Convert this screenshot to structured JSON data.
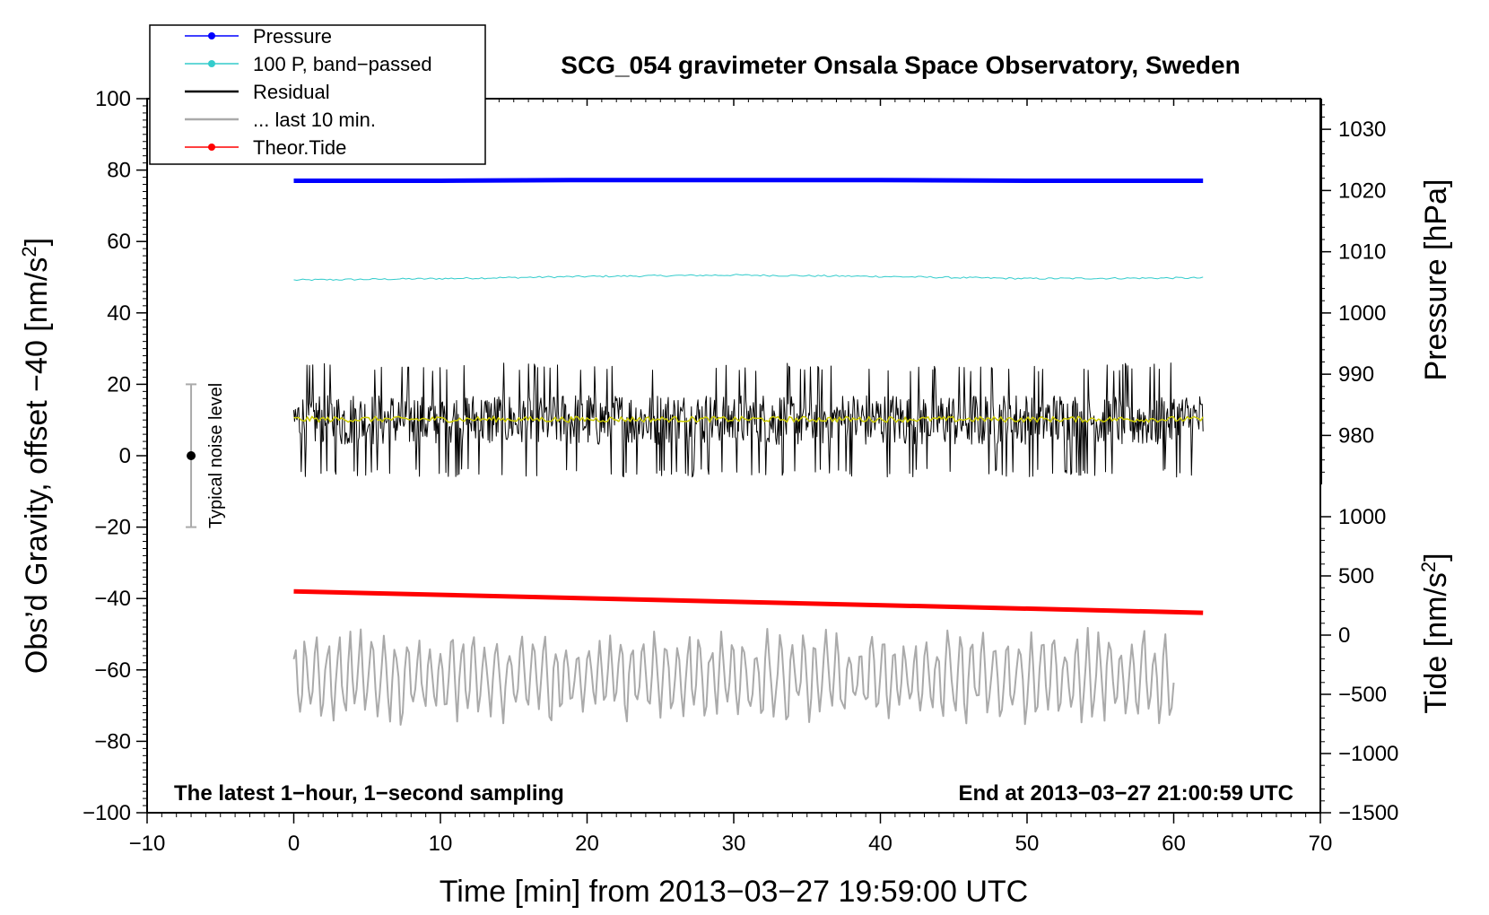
{
  "chart_data": {
    "type": "line",
    "title": "SCG_054 gravimeter Onsala Space Observatory, Sweden",
    "xlabel": "Time [min] from 2013−03−27 19:59:00 UTC",
    "ylabel_left_prefix": "Obs’d Gravity, offset −40 [nm/s",
    "ylabel_left_sup": "2",
    "ylabel_left_suffix": "]",
    "ylabel_right_pressure": "Pressure [hPa]",
    "ylabel_right_tide_prefix": "Tide [nm/s",
    "ylabel_right_tide_sup": "2",
    "ylabel_right_tide_suffix": "]",
    "xlim": [
      -10,
      70
    ],
    "ylim": [
      -100,
      100
    ],
    "pressure_axis_range": [
      972,
      1035
    ],
    "tide_axis_range": [
      -1500,
      1000
    ],
    "x_ticks": [
      {
        "v": -10,
        "t": "−10"
      },
      {
        "v": 0,
        "t": "0"
      },
      {
        "v": 10,
        "t": "10"
      },
      {
        "v": 20,
        "t": "20"
      },
      {
        "v": 30,
        "t": "30"
      },
      {
        "v": 40,
        "t": "40"
      },
      {
        "v": 50,
        "t": "50"
      },
      {
        "v": 60,
        "t": "60"
      },
      {
        "v": 70,
        "t": "70"
      }
    ],
    "y_ticks": [
      {
        "v": 100,
        "t": "100"
      },
      {
        "v": 80,
        "t": "80"
      },
      {
        "v": 60,
        "t": "60"
      },
      {
        "v": 40,
        "t": "40"
      },
      {
        "v": 20,
        "t": "20"
      },
      {
        "v": 0,
        "t": "0"
      },
      {
        "v": -20,
        "t": "−20"
      },
      {
        "v": -40,
        "t": "−40"
      },
      {
        "v": -60,
        "t": "−60"
      },
      {
        "v": -80,
        "t": "−80"
      },
      {
        "v": -100,
        "t": "−100"
      }
    ],
    "pressure_ticks": [
      {
        "v": 1030,
        "t": "1030"
      },
      {
        "v": 1020,
        "t": "1020"
      },
      {
        "v": 1010,
        "t": "1010"
      },
      {
        "v": 1000,
        "t": "1000"
      },
      {
        "v": 990,
        "t": "990"
      },
      {
        "v": 980,
        "t": "980"
      }
    ],
    "tide_ticks": [
      {
        "v": 1000,
        "t": "1000"
      },
      {
        "v": 500,
        "t": "500"
      },
      {
        "v": 0,
        "t": "0"
      },
      {
        "v": -500,
        "t": "−500"
      },
      {
        "v": -1000,
        "t": "−1000"
      },
      {
        "v": -1500,
        "t": "−1500"
      }
    ],
    "legend": [
      {
        "label": "Pressure",
        "color": "#0000ff",
        "marker": true
      },
      {
        "label": "100 P, band−passed",
        "color": "#33cccc",
        "marker": true
      },
      {
        "label": "Residual",
        "color": "#000000",
        "marker": false
      },
      {
        "label": "... last 10 min.",
        "color": "#aaaaaa",
        "marker": false
      },
      {
        "label": "Theor.Tide",
        "color": "#ff0000",
        "marker": true
      }
    ],
    "series": [
      {
        "name": "Pressure",
        "color": "#0000ff",
        "x": [
          0,
          10,
          20,
          30,
          40,
          50,
          62
        ],
        "y": [
          77,
          77,
          77.2,
          77.2,
          77.2,
          77,
          77
        ]
      },
      {
        "name": "100 P, band-passed",
        "color": "#33cccc",
        "x": [
          0,
          10,
          20,
          30,
          40,
          50,
          62
        ],
        "y": [
          49.2,
          49.6,
          50.2,
          50.6,
          50.2,
          49.6,
          49.8
        ]
      },
      {
        "name": "Residual",
        "color": "#000000",
        "x_range": [
          0,
          62
        ],
        "center": 10,
        "spread_high": 29,
        "spread_low": -6
      },
      {
        "name": "Residual smoothed",
        "color": "#cccc00",
        "x_range": [
          0,
          62
        ],
        "center": 10.2
      },
      {
        "name": "... last 10 min.",
        "color": "#aaaaaa",
        "x_range": [
          0,
          60
        ],
        "center": -62,
        "spread_high": -44,
        "spread_low": -78
      },
      {
        "name": "Theor.Tide",
        "color": "#ff0000",
        "x": [
          0,
          62
        ],
        "y": [
          -38,
          -44
        ]
      }
    ],
    "noise_marker": {
      "x": -7,
      "y": 0,
      "low": -20,
      "high": 20,
      "label": "Typical noise level"
    },
    "note_left": "The latest 1−hour, 1−second sampling",
    "note_right": "End at 2013−03−27 21:00:59 UTC"
  }
}
